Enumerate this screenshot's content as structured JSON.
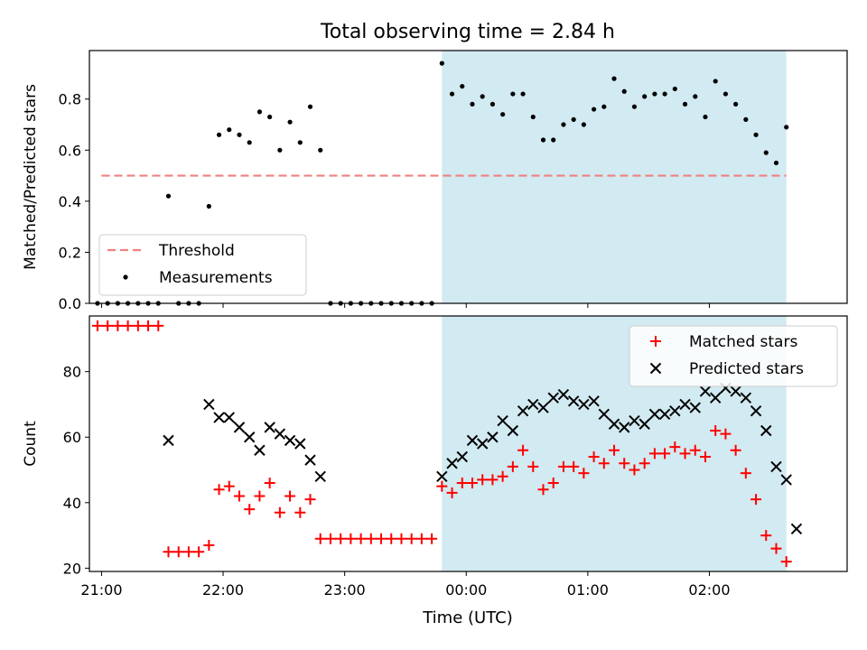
{
  "figure": {
    "title": "Total observing time = 2.84 h",
    "xlabel": "Time (UTC)"
  },
  "colors": {
    "threshold": "#f08080",
    "shade": "#add8e6",
    "matched": "#ff0000",
    "predicted": "#000000",
    "measurement": "#000000"
  },
  "chart_data": [
    {
      "type": "scatter",
      "ylabel": "Matched/Predicted stars",
      "ylim": [
        0,
        0.99
      ],
      "yticks": [
        0.0,
        0.2,
        0.4,
        0.6,
        0.8
      ],
      "xlim": [
        "20:54",
        "03:08"
      ],
      "xticks": [
        "21:00",
        "22:00",
        "23:00",
        "00:00",
        "01:00",
        "02:00"
      ],
      "shaded_interval": [
        "23:48",
        "02:38"
      ],
      "threshold": {
        "name": "Threshold",
        "value": 0.5,
        "x": [
          "21:00",
          "02:38"
        ]
      },
      "legend": {
        "position": "bottom-left",
        "entries": [
          "Threshold",
          "Measurements"
        ]
      },
      "series": [
        {
          "name": "Measurements",
          "marker": "dot",
          "points": [
            [
              "20:58",
              0.0
            ],
            [
              "21:03",
              0.0
            ],
            [
              "21:08",
              0.0
            ],
            [
              "21:13",
              0.0
            ],
            [
              "21:18",
              0.0
            ],
            [
              "21:23",
              0.0
            ],
            [
              "21:28",
              0.0
            ],
            [
              "21:33",
              0.42
            ],
            [
              "21:38",
              0.0
            ],
            [
              "21:43",
              0.0
            ],
            [
              "21:48",
              0.0
            ],
            [
              "21:53",
              0.38
            ],
            [
              "21:58",
              0.66
            ],
            [
              "22:03",
              0.68
            ],
            [
              "22:08",
              0.66
            ],
            [
              "22:13",
              0.63
            ],
            [
              "22:18",
              0.75
            ],
            [
              "22:23",
              0.73
            ],
            [
              "22:28",
              0.6
            ],
            [
              "22:33",
              0.71
            ],
            [
              "22:38",
              0.63
            ],
            [
              "22:43",
              0.77
            ],
            [
              "22:48",
              0.6
            ],
            [
              "22:53",
              0.0
            ],
            [
              "22:58",
              0.0
            ],
            [
              "23:03",
              0.0
            ],
            [
              "23:08",
              0.0
            ],
            [
              "23:13",
              0.0
            ],
            [
              "23:18",
              0.0
            ],
            [
              "23:23",
              0.0
            ],
            [
              "23:28",
              0.0
            ],
            [
              "23:33",
              0.0
            ],
            [
              "23:38",
              0.0
            ],
            [
              "23:43",
              0.0
            ],
            [
              "23:48",
              0.94
            ],
            [
              "23:53",
              0.82
            ],
            [
              "23:58",
              0.85
            ],
            [
              "00:03",
              0.78
            ],
            [
              "00:08",
              0.81
            ],
            [
              "00:13",
              0.78
            ],
            [
              "00:18",
              0.74
            ],
            [
              "00:23",
              0.82
            ],
            [
              "00:28",
              0.82
            ],
            [
              "00:33",
              0.73
            ],
            [
              "00:38",
              0.64
            ],
            [
              "00:43",
              0.64
            ],
            [
              "00:48",
              0.7
            ],
            [
              "00:53",
              0.72
            ],
            [
              "00:58",
              0.7
            ],
            [
              "01:03",
              0.76
            ],
            [
              "01:08",
              0.77
            ],
            [
              "01:13",
              0.88
            ],
            [
              "01:18",
              0.83
            ],
            [
              "01:23",
              0.77
            ],
            [
              "01:28",
              0.81
            ],
            [
              "01:33",
              0.82
            ],
            [
              "01:38",
              0.82
            ],
            [
              "01:43",
              0.84
            ],
            [
              "01:48",
              0.78
            ],
            [
              "01:53",
              0.81
            ],
            [
              "01:58",
              0.73
            ],
            [
              "02:03",
              0.87
            ],
            [
              "02:08",
              0.82
            ],
            [
              "02:13",
              0.78
            ],
            [
              "02:18",
              0.72
            ],
            [
              "02:23",
              0.66
            ],
            [
              "02:28",
              0.59
            ],
            [
              "02:33",
              0.55
            ],
            [
              "02:38",
              0.69
            ]
          ]
        }
      ]
    },
    {
      "type": "scatter",
      "ylabel": "Count",
      "ylim": [
        19,
        97
      ],
      "yticks": [
        20,
        40,
        60,
        80
      ],
      "xlim": [
        "20:54",
        "03:08"
      ],
      "xticks": [
        "21:00",
        "22:00",
        "23:00",
        "00:00",
        "01:00",
        "02:00"
      ],
      "shaded_interval": [
        "23:48",
        "02:38"
      ],
      "legend": {
        "position": "top-right",
        "entries": [
          "Matched stars",
          "Predicted stars"
        ]
      },
      "series": [
        {
          "name": "Matched stars",
          "marker": "plus",
          "points": [
            [
              "20:58",
              94
            ],
            [
              "21:03",
              94
            ],
            [
              "21:08",
              94
            ],
            [
              "21:13",
              94
            ],
            [
              "21:18",
              94
            ],
            [
              "21:23",
              94
            ],
            [
              "21:28",
              94
            ],
            [
              "21:33",
              25
            ],
            [
              "21:38",
              25
            ],
            [
              "21:43",
              25
            ],
            [
              "21:48",
              25
            ],
            [
              "21:53",
              27
            ],
            [
              "21:58",
              44
            ],
            [
              "22:03",
              45
            ],
            [
              "22:08",
              42
            ],
            [
              "22:13",
              38
            ],
            [
              "22:18",
              42
            ],
            [
              "22:23",
              46
            ],
            [
              "22:28",
              37
            ],
            [
              "22:33",
              42
            ],
            [
              "22:38",
              37
            ],
            [
              "22:43",
              41
            ],
            [
              "22:48",
              29
            ],
            [
              "22:53",
              29
            ],
            [
              "22:58",
              29
            ],
            [
              "23:03",
              29
            ],
            [
              "23:08",
              29
            ],
            [
              "23:13",
              29
            ],
            [
              "23:18",
              29
            ],
            [
              "23:23",
              29
            ],
            [
              "23:28",
              29
            ],
            [
              "23:33",
              29
            ],
            [
              "23:38",
              29
            ],
            [
              "23:43",
              29
            ],
            [
              "23:48",
              45
            ],
            [
              "23:53",
              43
            ],
            [
              "23:58",
              46
            ],
            [
              "00:03",
              46
            ],
            [
              "00:08",
              47
            ],
            [
              "00:13",
              47
            ],
            [
              "00:18",
              48
            ],
            [
              "00:23",
              51
            ],
            [
              "00:28",
              56
            ],
            [
              "00:33",
              51
            ],
            [
              "00:38",
              44
            ],
            [
              "00:43",
              46
            ],
            [
              "00:48",
              51
            ],
            [
              "00:53",
              51
            ],
            [
              "00:58",
              49
            ],
            [
              "01:03",
              54
            ],
            [
              "01:08",
              52
            ],
            [
              "01:13",
              56
            ],
            [
              "01:18",
              52
            ],
            [
              "01:23",
              50
            ],
            [
              "01:28",
              52
            ],
            [
              "01:33",
              55
            ],
            [
              "01:38",
              55
            ],
            [
              "01:43",
              57
            ],
            [
              "01:48",
              55
            ],
            [
              "01:53",
              56
            ],
            [
              "01:58",
              54
            ],
            [
              "02:03",
              62
            ],
            [
              "02:08",
              61
            ],
            [
              "02:13",
              56
            ],
            [
              "02:18",
              49
            ],
            [
              "02:23",
              41
            ],
            [
              "02:28",
              30
            ],
            [
              "02:33",
              26
            ],
            [
              "02:38",
              22
            ]
          ]
        },
        {
          "name": "Predicted stars",
          "marker": "x",
          "points": [
            [
              "21:33",
              59
            ],
            [
              "21:53",
              70
            ],
            [
              "21:58",
              66
            ],
            [
              "22:03",
              66
            ],
            [
              "22:08",
              63
            ],
            [
              "22:13",
              60
            ],
            [
              "22:18",
              56
            ],
            [
              "22:23",
              63
            ],
            [
              "22:28",
              61
            ],
            [
              "22:33",
              59
            ],
            [
              "22:38",
              58
            ],
            [
              "22:43",
              53
            ],
            [
              "22:48",
              48
            ],
            [
              "23:48",
              48
            ],
            [
              "23:53",
              52
            ],
            [
              "23:58",
              54
            ],
            [
              "00:03",
              59
            ],
            [
              "00:08",
              58
            ],
            [
              "00:13",
              60
            ],
            [
              "00:18",
              65
            ],
            [
              "00:23",
              62
            ],
            [
              "00:28",
              68
            ],
            [
              "00:33",
              70
            ],
            [
              "00:38",
              69
            ],
            [
              "00:43",
              72
            ],
            [
              "00:48",
              73
            ],
            [
              "00:53",
              71
            ],
            [
              "00:58",
              70
            ],
            [
              "01:03",
              71
            ],
            [
              "01:08",
              67
            ],
            [
              "01:13",
              64
            ],
            [
              "01:18",
              63
            ],
            [
              "01:23",
              65
            ],
            [
              "01:28",
              64
            ],
            [
              "01:33",
              67
            ],
            [
              "01:38",
              67
            ],
            [
              "01:43",
              68
            ],
            [
              "01:48",
              70
            ],
            [
              "01:53",
              69
            ],
            [
              "01:58",
              74
            ],
            [
              "02:03",
              72
            ],
            [
              "02:08",
              75
            ],
            [
              "02:13",
              74
            ],
            [
              "02:18",
              72
            ],
            [
              "02:23",
              68
            ],
            [
              "02:28",
              62
            ],
            [
              "02:33",
              51
            ],
            [
              "02:38",
              47
            ],
            [
              "02:43",
              32
            ]
          ]
        }
      ]
    }
  ]
}
